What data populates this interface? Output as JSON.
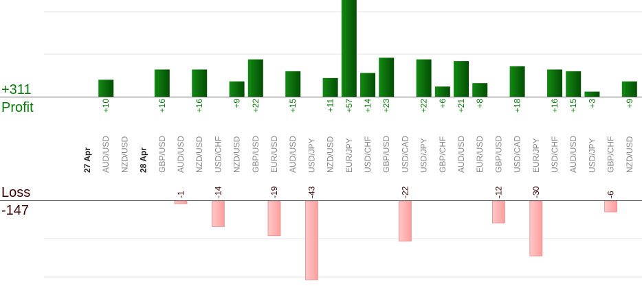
{
  "summary": {
    "profit_total": "+311",
    "profit_label": "Profit",
    "loss_label": "Loss",
    "loss_total": "-147"
  },
  "colors": {
    "profit_bar": "#0b6b0b",
    "profit_text": "#0a7a0a",
    "loss_bar": "#ffb3b3",
    "loss_bar_border": "#e58a8a",
    "loss_text": "#3a0000",
    "grid": "#e6e6e6",
    "axis": "#666666",
    "pair_label": "#888888",
    "date_label": "#222222"
  },
  "chart_data": {
    "type": "bar",
    "profit_ylim": [
      0,
      57
    ],
    "loss_ylim": [
      0,
      43
    ],
    "grid": true,
    "columns": [
      {
        "kind": "date",
        "label": "27 Apr"
      },
      {
        "kind": "pair",
        "label": "AUD/USD",
        "profit": 10,
        "profit_label": "+10"
      },
      {
        "kind": "pair",
        "label": "NZD/USD"
      },
      {
        "kind": "date",
        "label": "28 Apr"
      },
      {
        "kind": "pair",
        "label": "GBP/USD",
        "profit": 16,
        "profit_label": "+16"
      },
      {
        "kind": "pair",
        "label": "AUD/USD",
        "loss": 1,
        "loss_label": "-1"
      },
      {
        "kind": "pair",
        "label": "NZD/USD",
        "profit": 16,
        "profit_label": "+16"
      },
      {
        "kind": "pair",
        "label": "USD/CHF",
        "loss": 14,
        "loss_label": "-14"
      },
      {
        "kind": "pair",
        "label": "NZD/USD",
        "profit": 9,
        "profit_label": "+9"
      },
      {
        "kind": "pair",
        "label": "GBP/USD",
        "profit": 22,
        "profit_label": "+22"
      },
      {
        "kind": "pair",
        "label": "EUR/USD",
        "loss": 19,
        "loss_label": "-19"
      },
      {
        "kind": "pair",
        "label": "AUD/USD",
        "profit": 15,
        "profit_label": "+15"
      },
      {
        "kind": "pair",
        "label": "USD/JPY",
        "loss": 43,
        "loss_label": "-43"
      },
      {
        "kind": "pair",
        "label": "NZD/USD",
        "profit": 11,
        "profit_label": "+11"
      },
      {
        "kind": "pair",
        "label": "EUR/JPY",
        "profit": 57,
        "profit_label": "+57"
      },
      {
        "kind": "pair",
        "label": "USD/CHF",
        "profit": 14,
        "profit_label": "+14"
      },
      {
        "kind": "pair",
        "label": "GBP/USD",
        "profit": 23,
        "profit_label": "+23"
      },
      {
        "kind": "pair",
        "label": "USD/CAD",
        "loss": 22,
        "loss_label": "-22"
      },
      {
        "kind": "pair",
        "label": "USD/JPY",
        "profit": 22,
        "profit_label": "+22"
      },
      {
        "kind": "pair",
        "label": "GBP/CHF",
        "profit": 6,
        "profit_label": "+6"
      },
      {
        "kind": "pair",
        "label": "AUD/USD",
        "profit": 21,
        "profit_label": "+21"
      },
      {
        "kind": "pair",
        "label": "EUR/USD",
        "profit": 8,
        "profit_label": "+8"
      },
      {
        "kind": "pair",
        "label": "GBP/USD",
        "loss": 12,
        "loss_label": "-12"
      },
      {
        "kind": "pair",
        "label": "USD/CAD",
        "profit": 18,
        "profit_label": "+18"
      },
      {
        "kind": "pair",
        "label": "EUR/JPY",
        "loss": 30,
        "loss_label": "-30"
      },
      {
        "kind": "pair",
        "label": "USD/CHF",
        "profit": 16,
        "profit_label": "+16"
      },
      {
        "kind": "pair",
        "label": "AUD/USD",
        "profit": 15,
        "profit_label": "+15"
      },
      {
        "kind": "pair",
        "label": "USD/JPY",
        "profit": 3,
        "profit_label": "+3"
      },
      {
        "kind": "pair",
        "label": "GBP/CHF",
        "loss": 6,
        "loss_label": "-6"
      },
      {
        "kind": "pair",
        "label": "NZD/USD",
        "profit": 9,
        "profit_label": "+9"
      }
    ]
  }
}
